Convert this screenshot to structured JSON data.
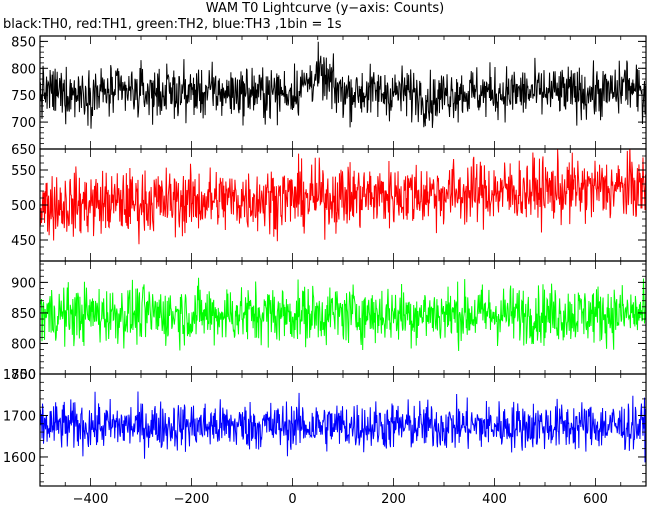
{
  "chart_data": {
    "type": "line",
    "title": "WAM T0 Lightcurve (y−axis: Counts)",
    "subtitle": "black:TH0, red:TH1, green:TH2, blue:TH3 ,1bin = 1s",
    "x_range": [
      -500,
      700
    ],
    "x_ticks": [
      -400,
      -200,
      0,
      200,
      400,
      600
    ],
    "x_tick_labels": [
      "−400",
      "−200",
      "0",
      "200",
      "400",
      "600"
    ],
    "panels": [
      {
        "series": "TH0",
        "color": "#000000",
        "y_range": [
          650,
          860
        ],
        "y_ticks": [
          650,
          700,
          750,
          800,
          850
        ],
        "y_tick_labels": [
          "650",
          "700",
          "750",
          "800",
          "850"
        ],
        "mean": 755,
        "noise_amplitude": 34,
        "features": [
          [
            50,
            30,
            30
          ],
          [
            275,
            20,
            -15
          ],
          [
            660,
            10,
            20
          ]
        ]
      },
      {
        "series": "TH1",
        "color": "#ff0000",
        "y_range": [
          420,
          580
        ],
        "y_ticks": [
          450,
          500,
          550
        ],
        "y_tick_labels": [
          "450",
          "500",
          "550"
        ],
        "mean": 500,
        "trend": 25,
        "noise_amplitude": 33,
        "features": []
      },
      {
        "series": "TH2",
        "color": "#00ff00",
        "y_range": [
          750,
          935
        ],
        "y_ticks": [
          750,
          800,
          850,
          900
        ],
        "y_tick_labels": [
          "750",
          "800",
          "850",
          "900"
        ],
        "mean": 848,
        "noise_amplitude": 34,
        "features": []
      },
      {
        "series": "TH3",
        "color": "#0000ff",
        "y_range": [
          1530,
          1800
        ],
        "y_ticks": [
          1600,
          1700,
          1800
        ],
        "y_tick_labels": [
          "1600",
          "1700",
          "1800"
        ],
        "mean": 1675,
        "noise_amplitude": 42,
        "features": []
      }
    ],
    "grid": false,
    "legend": "none"
  }
}
